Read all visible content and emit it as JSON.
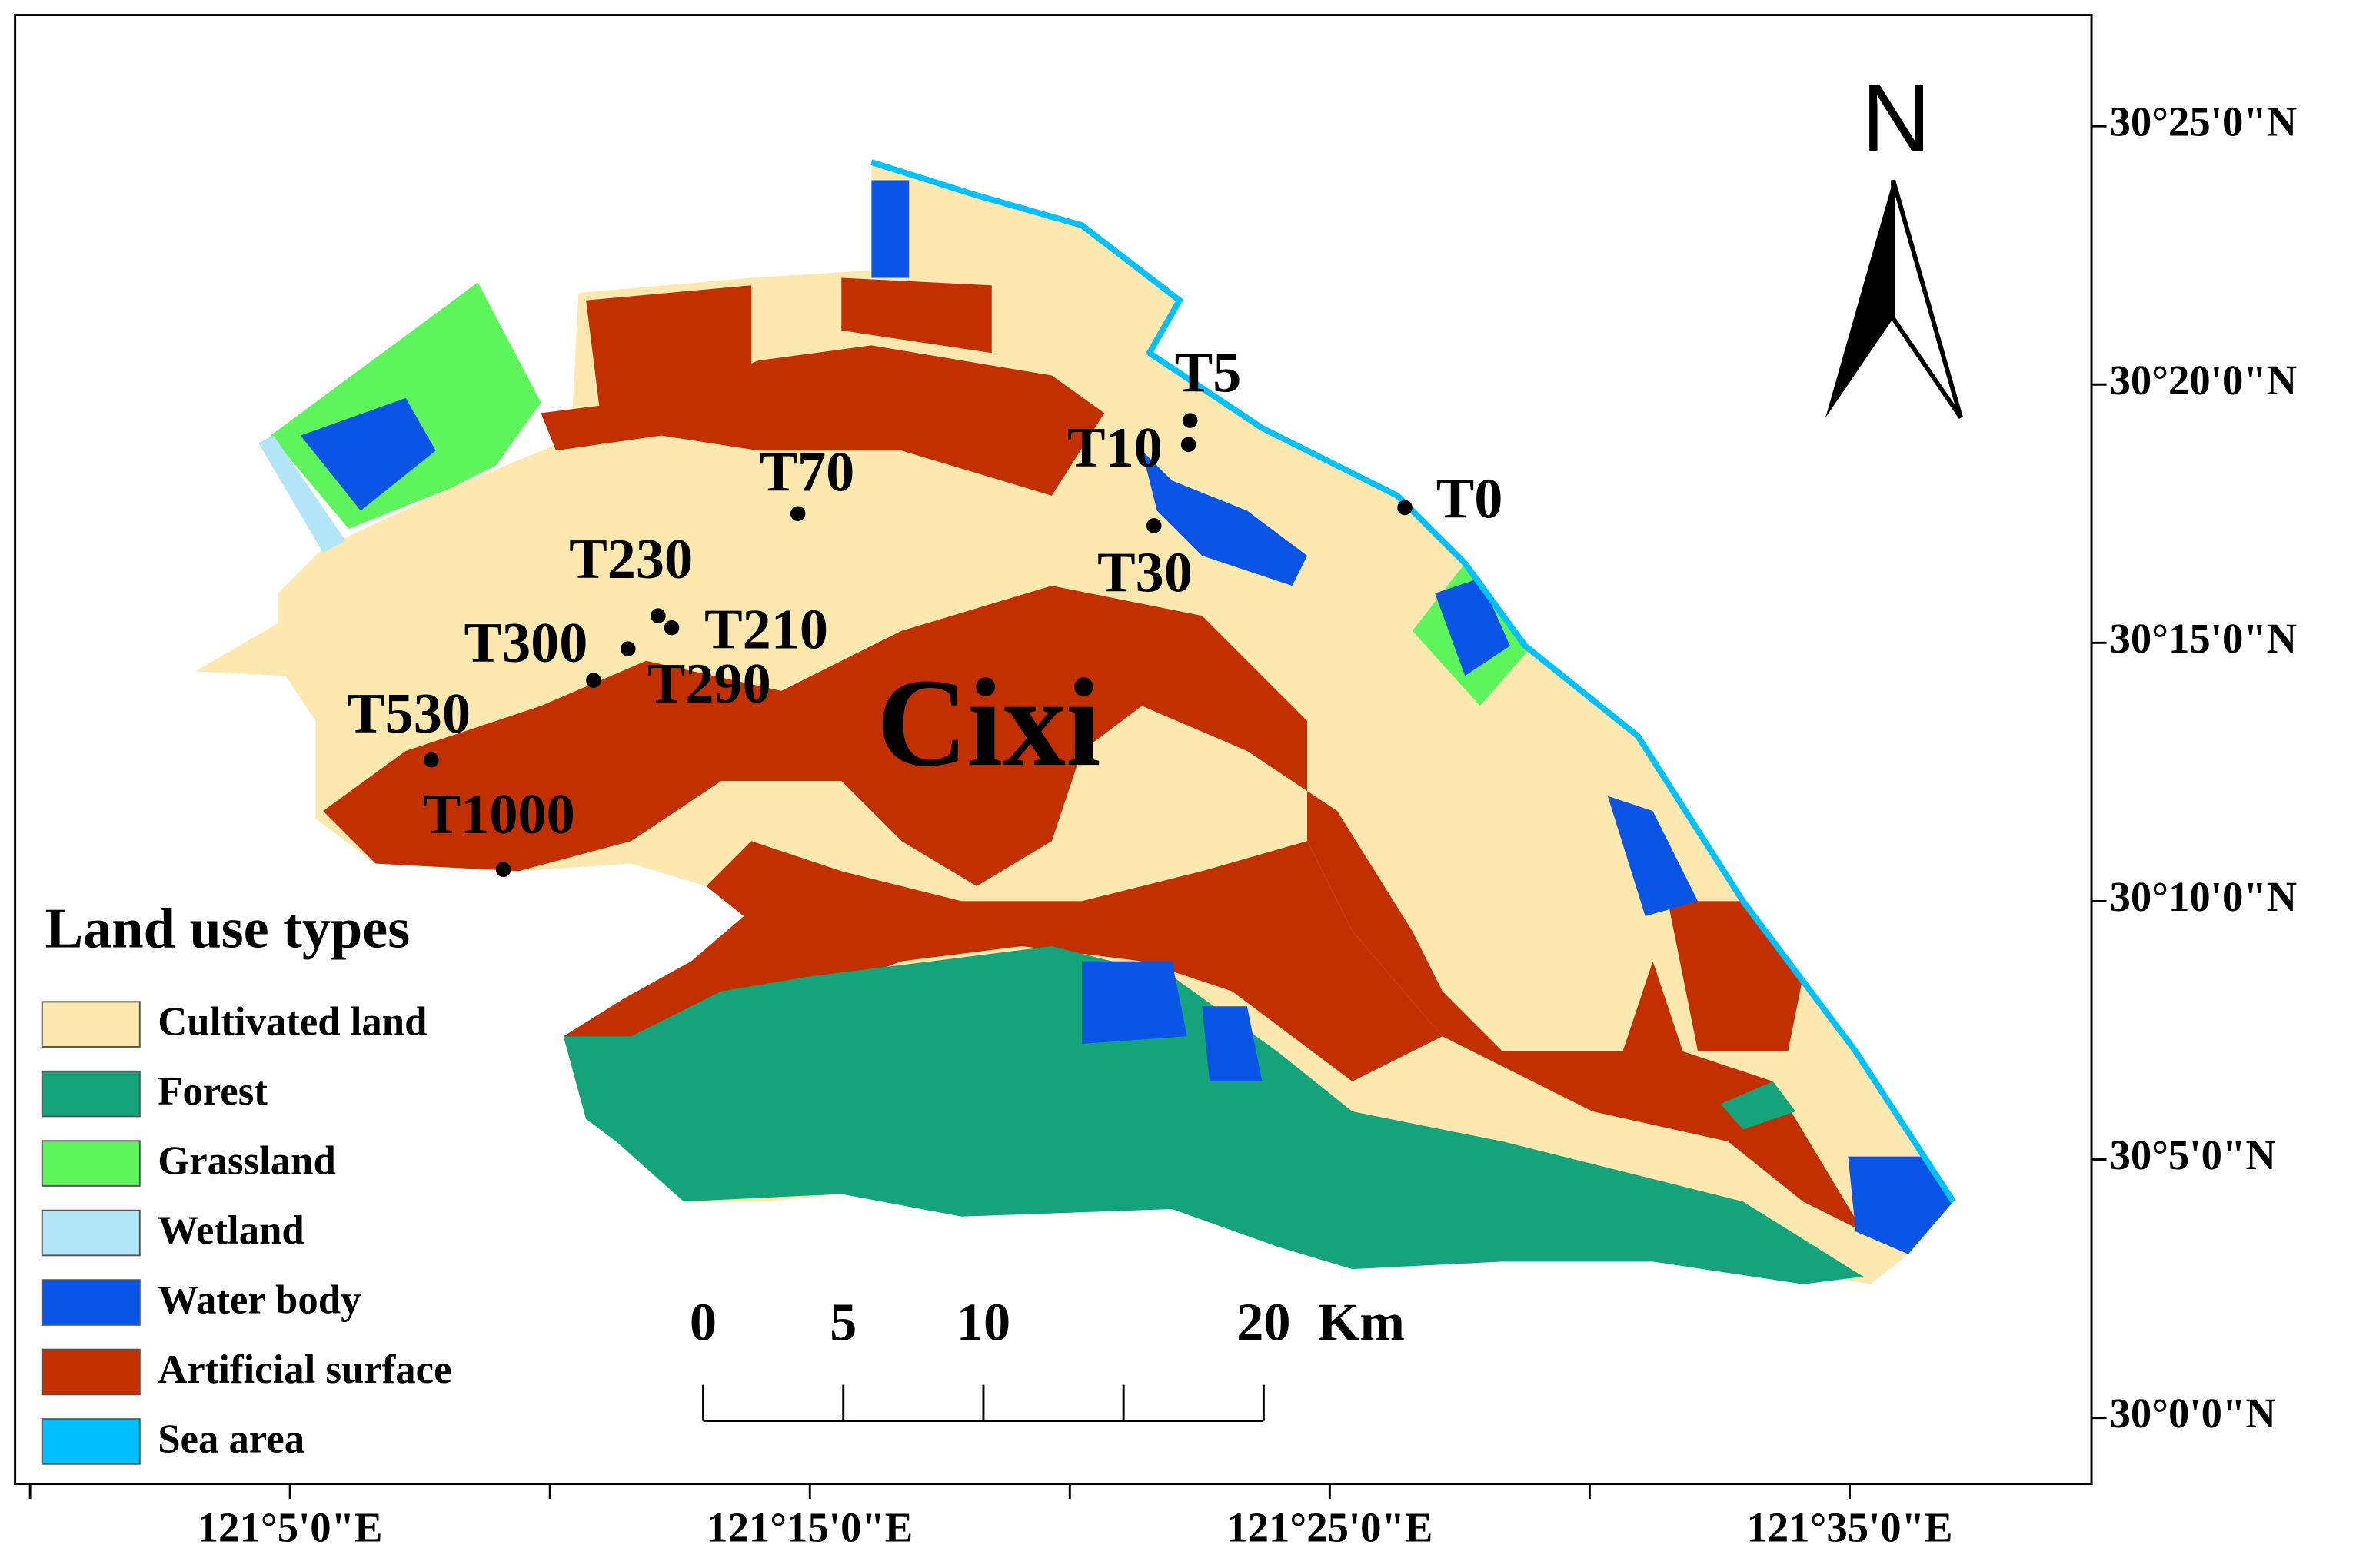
{
  "map": {
    "place_label": "Cixi",
    "north_label": "N",
    "legend": {
      "title": "Land use types",
      "items": [
        {
          "label": "Cultivated land",
          "color": "#fde9b0"
        },
        {
          "label": "Forest",
          "color": "#14a37a"
        },
        {
          "label": "Grassland",
          "color": "#5ef55c"
        },
        {
          "label": "Wetland",
          "color": "#b3e5f8"
        },
        {
          "label": "Water body",
          "color": "#0a55e6"
        },
        {
          "label": "Artificial surface",
          "color": "#c23000"
        },
        {
          "label": "Sea area",
          "color": "#00c0ff"
        }
      ]
    },
    "latitude_labels": [
      "30°25'0\"N",
      "30°20'0\"N",
      "30°15'0\"N",
      "30°10'0\"N",
      "30°5'0\"N",
      "30°0'0\"N"
    ],
    "longitude_labels": [
      "121°5'0\"E",
      "121°15'0\"E",
      "121°25'0\"E",
      "121°35'0\"E"
    ],
    "scale_bar": {
      "ticks": [
        0,
        5,
        10,
        20
      ],
      "unit": "Km"
    },
    "points": [
      "T5",
      "T10",
      "T0",
      "T70",
      "T30",
      "T230",
      "T210",
      "T300",
      "T290",
      "T530",
      "T1000"
    ]
  }
}
